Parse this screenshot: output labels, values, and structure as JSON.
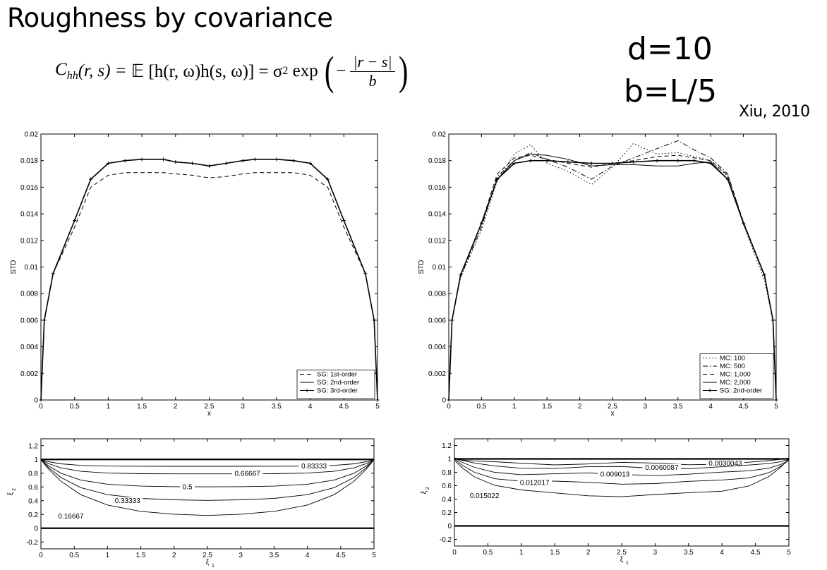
{
  "slide": {
    "title": "Roughness by covariance",
    "formula": {
      "lhs": "C",
      "lhs_sub": "hh",
      "args": "(r, s) = ",
      "expect": "𝔼 [h(r, ω)h(s, ω)] = σ",
      "sup": "2",
      "exp": " exp ",
      "numerator": "|r − s|",
      "denominator": "b",
      "minus": "−"
    },
    "param_d": "d=10",
    "param_b": "b=L/5",
    "citation": "Xiu, 2010"
  },
  "chart_data": [
    {
      "type": "line",
      "ylabel": "STD",
      "xlabel": "x",
      "xlim": [
        0,
        5
      ],
      "ylim": [
        0,
        0.02
      ],
      "xticks": [
        "0",
        "0.5",
        "1",
        "1.5",
        "2",
        "2.5",
        "3",
        "3.5",
        "4",
        "4.5",
        "5"
      ],
      "yticks": [
        "0",
        "0.002",
        "0.004",
        "0.006",
        "0.008",
        "0.01",
        "0.012",
        "0.014",
        "0.016",
        "0.018",
        "0.02"
      ],
      "legend_position": "bottom-right",
      "series": [
        {
          "name": "SG: 1st-order",
          "style": "dashed",
          "x": [
            0,
            0.05,
            0.18,
            0.5,
            0.74,
            1.0,
            1.25,
            1.5,
            1.82,
            2.0,
            2.25,
            2.5,
            2.75,
            3.0,
            3.18,
            3.5,
            3.75,
            4.0,
            4.26,
            4.5,
            4.82,
            4.95,
            5.0
          ],
          "y": [
            0,
            0.006,
            0.0095,
            0.013,
            0.016,
            0.0169,
            0.0171,
            0.0171,
            0.0171,
            0.017,
            0.0169,
            0.0167,
            0.0168,
            0.017,
            0.0171,
            0.0171,
            0.0171,
            0.0169,
            0.016,
            0.013,
            0.0095,
            0.006,
            0
          ]
        },
        {
          "name": "SG: 2nd-order",
          "style": "solid",
          "x": [
            0,
            0.05,
            0.18,
            0.5,
            0.74,
            1.0,
            1.25,
            1.5,
            1.82,
            2.0,
            2.25,
            2.5,
            2.75,
            3.0,
            3.18,
            3.5,
            3.75,
            4.0,
            4.26,
            4.5,
            4.82,
            4.95,
            5.0
          ],
          "y": [
            0,
            0.006,
            0.0095,
            0.0135,
            0.0166,
            0.0178,
            0.018,
            0.0181,
            0.0181,
            0.0179,
            0.0178,
            0.0176,
            0.0178,
            0.018,
            0.0181,
            0.0181,
            0.018,
            0.0178,
            0.0166,
            0.0135,
            0.0095,
            0.006,
            0
          ]
        },
        {
          "name": "SG: 3rd-order",
          "style": "solid-plus",
          "x": [
            0,
            0.05,
            0.18,
            0.5,
            0.74,
            1.0,
            1.25,
            1.5,
            1.82,
            2.0,
            2.25,
            2.5,
            2.75,
            3.0,
            3.18,
            3.5,
            3.75,
            4.0,
            4.26,
            4.5,
            4.82,
            4.95,
            5.0
          ],
          "y": [
            0,
            0.006,
            0.0095,
            0.0135,
            0.0166,
            0.0178,
            0.018,
            0.0181,
            0.0181,
            0.0179,
            0.0178,
            0.0176,
            0.0178,
            0.018,
            0.0181,
            0.0181,
            0.018,
            0.0178,
            0.0166,
            0.0135,
            0.0095,
            0.006,
            0
          ]
        }
      ]
    },
    {
      "type": "line",
      "ylabel": "STD",
      "xlabel": "x",
      "xlim": [
        0,
        5
      ],
      "ylim": [
        0,
        0.02
      ],
      "xticks": [
        "0",
        "0.5",
        "1",
        "1.5",
        "2",
        "2.5",
        "3",
        "3.5",
        "4",
        "4.5",
        "5"
      ],
      "yticks": [
        "0",
        "0.002",
        "0.004",
        "0.006",
        "0.008",
        "0.01",
        "0.012",
        "0.014",
        "0.016",
        "0.018",
        "0.02"
      ],
      "legend_position": "bottom-right",
      "series": [
        {
          "name": "MC: 100",
          "style": "dotted",
          "x": [
            0,
            0.05,
            0.18,
            0.5,
            0.74,
            1.0,
            1.25,
            1.5,
            1.82,
            2.18,
            2.5,
            2.82,
            3.18,
            3.5,
            3.75,
            4.0,
            4.26,
            4.5,
            4.82,
            4.95,
            5.0
          ],
          "y": [
            0,
            0.006,
            0.0092,
            0.0128,
            0.0165,
            0.0185,
            0.0192,
            0.0178,
            0.0172,
            0.0162,
            0.0175,
            0.0193,
            0.0185,
            0.0186,
            0.0183,
            0.018,
            0.0168,
            0.0132,
            0.009,
            0.006,
            0
          ]
        },
        {
          "name": "MC: 500",
          "style": "dashdot",
          "x": [
            0,
            0.05,
            0.18,
            0.5,
            0.74,
            1.0,
            1.25,
            1.5,
            1.82,
            2.18,
            2.5,
            2.82,
            3.18,
            3.5,
            3.75,
            4.0,
            4.26,
            4.5,
            4.82,
            4.95,
            5.0
          ],
          "y": [
            0,
            0.006,
            0.0093,
            0.013,
            0.0168,
            0.018,
            0.0186,
            0.0181,
            0.0175,
            0.0166,
            0.0176,
            0.0182,
            0.0189,
            0.0195,
            0.0188,
            0.0182,
            0.017,
            0.0133,
            0.0093,
            0.006,
            0
          ]
        },
        {
          "name": "MC: 1,000",
          "style": "dashed",
          "x": [
            0,
            0.05,
            0.18,
            0.5,
            0.74,
            1.0,
            1.25,
            1.5,
            1.82,
            2.18,
            2.5,
            2.82,
            3.18,
            3.5,
            3.75,
            4.0,
            4.26,
            4.5,
            4.82,
            4.95,
            5.0
          ],
          "y": [
            0,
            0.006,
            0.0094,
            0.0133,
            0.017,
            0.0182,
            0.0184,
            0.0181,
            0.0178,
            0.0175,
            0.0178,
            0.018,
            0.0183,
            0.0184,
            0.0182,
            0.018,
            0.0169,
            0.0134,
            0.0094,
            0.006,
            0
          ]
        },
        {
          "name": "MC: 2,000",
          "style": "solid",
          "x": [
            0,
            0.05,
            0.18,
            0.5,
            0.74,
            1.0,
            1.25,
            1.5,
            1.82,
            2.18,
            2.5,
            2.82,
            3.18,
            3.5,
            3.75,
            4.0,
            4.26,
            4.5,
            4.82,
            4.95,
            5.0
          ],
          "y": [
            0,
            0.006,
            0.0094,
            0.0133,
            0.0166,
            0.018,
            0.0185,
            0.0184,
            0.0181,
            0.0176,
            0.0177,
            0.0177,
            0.0176,
            0.0176,
            0.0178,
            0.0179,
            0.0166,
            0.0133,
            0.0094,
            0.006,
            0
          ]
        },
        {
          "name": "SG: 2nd-order",
          "style": "solid-plus",
          "x": [
            0,
            0.05,
            0.18,
            0.5,
            0.74,
            1.0,
            1.25,
            1.5,
            1.82,
            2.18,
            2.5,
            2.82,
            3.18,
            3.5,
            3.75,
            4.0,
            4.26,
            4.5,
            4.82,
            4.95,
            5.0
          ],
          "y": [
            0,
            0.006,
            0.0094,
            0.0133,
            0.0166,
            0.0178,
            0.018,
            0.018,
            0.0179,
            0.0178,
            0.0178,
            0.0179,
            0.018,
            0.018,
            0.018,
            0.0178,
            0.0166,
            0.0133,
            0.0094,
            0.006,
            0
          ]
        }
      ]
    },
    {
      "type": "contour",
      "xlabel": "ξ",
      "xlabel_sub": "1",
      "ylabel": "ξ",
      "ylabel_sub": "2",
      "xlim": [
        0,
        5
      ],
      "ylim": [
        -0.3,
        1.3
      ],
      "xticks": [
        "0",
        "0.5",
        "1",
        "1.5",
        "2",
        "2.5",
        "3",
        "3.5",
        "4",
        "4.5",
        "5"
      ],
      "yticks": [
        "-0.2",
        "0",
        "0.2",
        "0.4",
        "0.6",
        "0.8",
        "1",
        "1.2"
      ],
      "levels": [
        {
          "label": "0.83333",
          "value": 0.83333,
          "mid_y": 0.9,
          "label_x": 4.1
        },
        {
          "label": "0.66667",
          "value": 0.66667,
          "mid_y": 0.79,
          "label_x": 3.1
        },
        {
          "label": "0.5",
          "value": 0.5,
          "mid_y": 0.6,
          "label_x": 2.2
        },
        {
          "label": "0.33333",
          "value": 0.33333,
          "mid_y": 0.4,
          "label_x": 1.3
        },
        {
          "label": "0.16667",
          "value": 0.16667,
          "mid_y": 0.17,
          "label_x": 0.45
        }
      ]
    },
    {
      "type": "contour",
      "xlabel": "ξ",
      "xlabel_sub": "1",
      "ylabel": "ξ",
      "ylabel_sub": "2",
      "xlim": [
        0,
        5
      ],
      "ylim": [
        -0.3,
        1.3
      ],
      "xticks": [
        "0",
        "0.5",
        "1",
        "1.5",
        "2",
        "2.5",
        "3",
        "3.5",
        "4",
        "4.5",
        "5"
      ],
      "yticks": [
        "-0.2",
        "0",
        "0.2",
        "0.4",
        "0.6",
        "0.8",
        "1",
        "1.2"
      ],
      "levels": [
        {
          "label": "0.0030043",
          "value": 0.0030043,
          "mid_y": 0.93,
          "label_x": 4.05
        },
        {
          "label": "0.0060087",
          "value": 0.0060087,
          "mid_y": 0.87,
          "label_x": 3.1
        },
        {
          "label": "0.009013",
          "value": 0.009013,
          "mid_y": 0.77,
          "label_x": 2.4
        },
        {
          "label": "0.012017",
          "value": 0.012017,
          "mid_y": 0.64,
          "label_x": 1.2
        },
        {
          "label": "0.015022",
          "value": 0.015022,
          "mid_y": 0.45,
          "label_x": 0.45
        }
      ]
    }
  ]
}
